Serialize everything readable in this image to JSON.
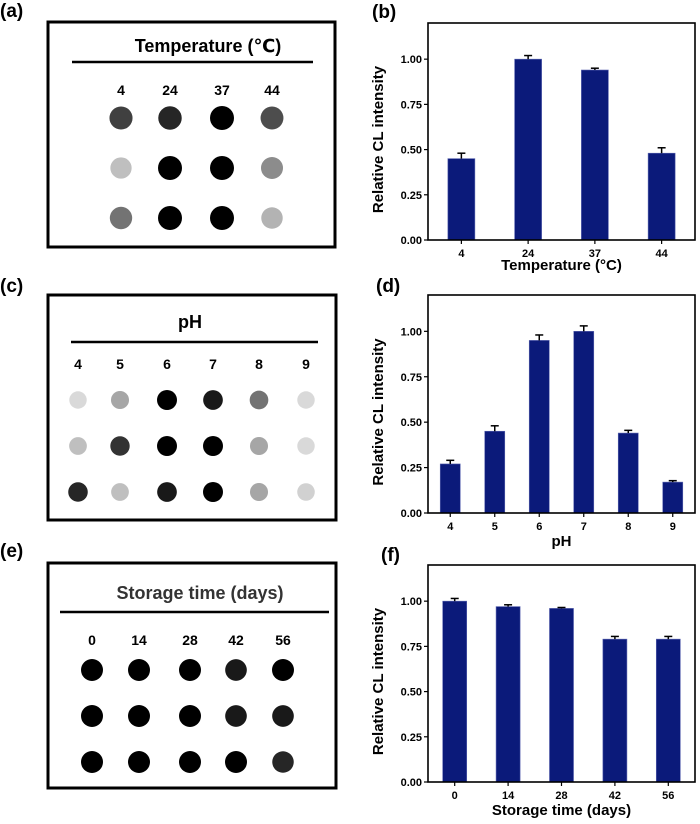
{
  "colors": {
    "bar": "#0b1a7a",
    "frame": "#000000"
  },
  "panels": {
    "a": {
      "label": "(a)",
      "title": "Temperature (℃)",
      "columns": [
        "4",
        "24",
        "37",
        "44"
      ],
      "spot_darkness": [
        [
          0.75,
          0.85,
          1.0,
          0.7
        ],
        [
          0.25,
          1.0,
          1.0,
          0.45
        ],
        [
          0.55,
          1.0,
          1.0,
          0.3
        ]
      ]
    },
    "c": {
      "label": "(c)",
      "title": "pH",
      "columns": [
        "4",
        "5",
        "6",
        "7",
        "8",
        "9"
      ],
      "spot_darkness": [
        [
          0.15,
          0.35,
          1.0,
          0.9,
          0.55,
          0.15
        ],
        [
          0.25,
          0.8,
          1.0,
          1.0,
          0.35,
          0.15
        ],
        [
          0.85,
          0.25,
          0.9,
          1.0,
          0.35,
          0.18
        ]
      ]
    },
    "e": {
      "label": "(e)",
      "title": "Storage time (days)",
      "columns": [
        "0",
        "14",
        "28",
        "42",
        "56"
      ],
      "spot_darkness": [
        [
          1.0,
          1.0,
          1.0,
          0.9,
          1.0
        ],
        [
          1.0,
          1.0,
          1.0,
          0.9,
          0.9
        ],
        [
          1.0,
          1.0,
          1.0,
          1.0,
          0.85
        ]
      ]
    }
  },
  "chart_data": [
    {
      "id": "b",
      "label": "(b)",
      "type": "bar",
      "xlabel": "Temperature (°C)",
      "ylabel": "Relative CL intensity",
      "categories": [
        "4",
        "24",
        "37",
        "44"
      ],
      "values": [
        0.45,
        1.0,
        0.94,
        0.48
      ],
      "errors": [
        0.03,
        0.02,
        0.01,
        0.03
      ],
      "ylim": [
        0,
        1.2
      ],
      "yticks": [
        "0.00",
        "0.25",
        "0.50",
        "0.75",
        "1.00"
      ],
      "grid": false
    },
    {
      "id": "d",
      "label": "(d)",
      "type": "bar",
      "xlabel": "pH",
      "ylabel": "Relative CL intensity",
      "categories": [
        "4",
        "5",
        "6",
        "7",
        "8",
        "9"
      ],
      "values": [
        0.27,
        0.45,
        0.95,
        1.0,
        0.44,
        0.17
      ],
      "errors": [
        0.02,
        0.03,
        0.03,
        0.03,
        0.015,
        0.008
      ],
      "ylim": [
        0,
        1.2
      ],
      "yticks": [
        "0.00",
        "0.25",
        "0.50",
        "0.75",
        "1.00"
      ],
      "grid": false
    },
    {
      "id": "f",
      "label": "(f)",
      "type": "bar",
      "xlabel": "Storage time (days)",
      "ylabel": "Relative CL intensity",
      "categories": [
        "0",
        "14",
        "28",
        "42",
        "56"
      ],
      "values": [
        1.0,
        0.97,
        0.96,
        0.79,
        0.79
      ],
      "errors": [
        0.015,
        0.01,
        0.005,
        0.015,
        0.015
      ],
      "ylim": [
        0,
        1.2
      ],
      "yticks": [
        "0.00",
        "0.25",
        "0.50",
        "0.75",
        "1.00"
      ],
      "grid": false
    }
  ]
}
